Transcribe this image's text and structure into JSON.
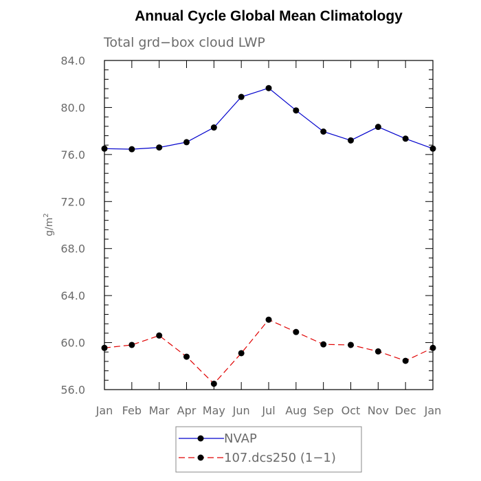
{
  "chart_data": {
    "type": "line",
    "title": "Annual Cycle Global Mean Climatology",
    "subtitle": "Total grd−box cloud LWP",
    "ylabel": "g/m",
    "ylabel_sup": "2",
    "xlabel": "",
    "categories": [
      "Jan",
      "Feb",
      "Mar",
      "Apr",
      "May",
      "Jun",
      "Jul",
      "Aug",
      "Sep",
      "Oct",
      "Nov",
      "Dec",
      "Jan"
    ],
    "ylim": [
      56.0,
      84.0
    ],
    "yticks": [
      "56.0",
      "60.0",
      "64.0",
      "68.0",
      "72.0",
      "76.0",
      "80.0",
      "84.0"
    ],
    "grid": false,
    "legend_position": "bottom",
    "series": [
      {
        "name": "NVAP",
        "color": "#0000cc",
        "dash": "solid",
        "values": [
          76.5,
          76.45,
          76.6,
          77.05,
          78.3,
          80.9,
          81.65,
          79.75,
          77.95,
          77.2,
          78.35,
          77.35,
          76.5
        ]
      },
      {
        "name": "107.dcs250 (1−1)",
        "color": "#e00000",
        "dash": "dashed",
        "values": [
          59.55,
          59.8,
          60.6,
          58.8,
          56.5,
          59.1,
          61.95,
          60.9,
          59.85,
          59.8,
          59.25,
          58.45,
          59.55
        ]
      }
    ]
  }
}
